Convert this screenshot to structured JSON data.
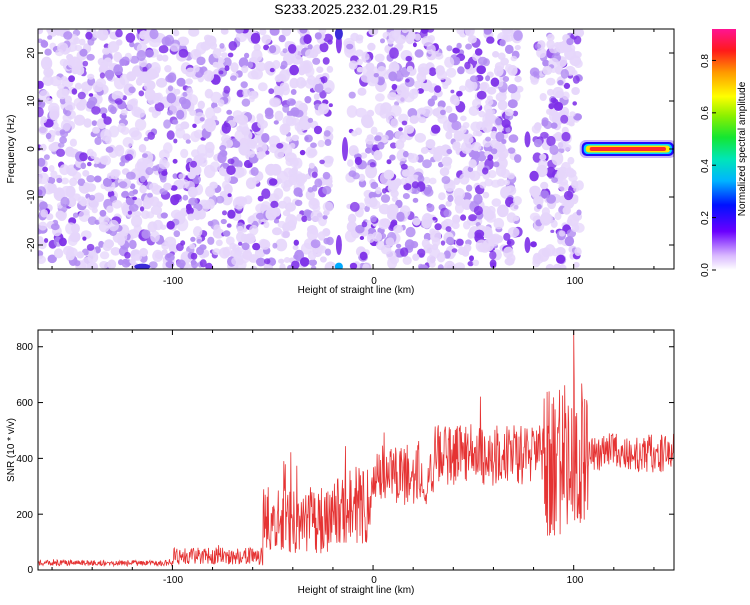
{
  "title": "S233.2025.232.01.29.R15",
  "chart_data": [
    {
      "type": "heatmap",
      "title": "S233.2025.232.01.29.R15",
      "xlabel": "Height of straight line (km)",
      "ylabel": "Frequency (Hz)",
      "xlim": [
        -167,
        150
      ],
      "ylim": [
        -25,
        25
      ],
      "xticks": [
        "-100",
        "0",
        "100"
      ],
      "yticks": [
        "-20",
        "-10",
        "0",
        "10",
        "20"
      ],
      "colorbar": {
        "label": "Normalized spectral amplitude",
        "range": [
          0,
          0.92
        ],
        "ticks": [
          "0.0",
          "0.2",
          "0.4",
          "0.6",
          "0.8"
        ]
      },
      "features": {
        "noise_region_x": [
          -167,
          103
        ],
        "clear_band_1_x": [
          -21,
          -12
        ],
        "clear_band_2_x": [
          73,
          80
        ],
        "narrowband_signal": {
          "x_range": [
            104,
            150
          ],
          "frequency": 0
        }
      },
      "colors": {
        "noise_light": "#e6d6fb",
        "noise_mid": "#b28cf2",
        "noise_dark": "#7d2fe8",
        "strong": "#3b2bd9",
        "signal_core": "#ff2a2a"
      }
    },
    {
      "type": "line",
      "xlabel": "Height of straight line (km)",
      "ylabel": "SNR (10 * v/v)",
      "xlim": [
        -167,
        150
      ],
      "ylim": [
        0,
        860
      ],
      "xticks": [
        "-100",
        "0",
        "100"
      ],
      "yticks": [
        "0",
        "200",
        "400",
        "600",
        "800"
      ],
      "color": "#e53333",
      "segments": [
        {
          "x_from": -167,
          "x_to": -100,
          "mean": 25,
          "spread": 10
        },
        {
          "x_from": -100,
          "x_to": -55,
          "mean": 50,
          "spread": 30
        },
        {
          "x_from": -55,
          "x_to": -20,
          "mean": 180,
          "spread": 120
        },
        {
          "x_from": -20,
          "x_to": 0,
          "mean": 230,
          "spread": 140
        },
        {
          "x_from": 0,
          "x_to": 30,
          "mean": 340,
          "spread": 110
        },
        {
          "x_from": 30,
          "x_to": 85,
          "mean": 410,
          "spread": 110
        },
        {
          "x_from": 85,
          "x_to": 107,
          "mean": 400,
          "spread": 280
        },
        {
          "x_from": 107,
          "x_to": 150,
          "mean": 420,
          "spread": 70
        }
      ],
      "peak": {
        "x": 100,
        "y": 860
      }
    }
  ]
}
